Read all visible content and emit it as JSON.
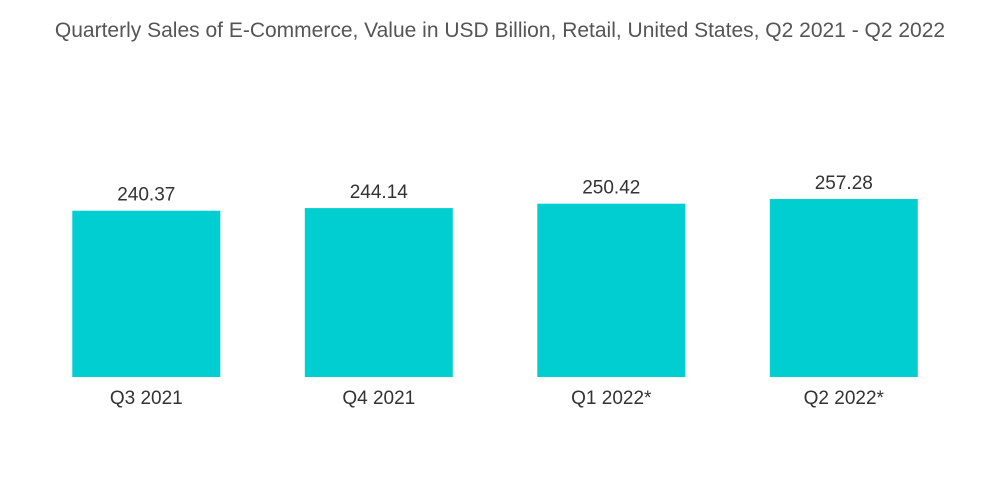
{
  "chart_data": {
    "type": "bar",
    "title": "Quarterly Sales of E-Commerce, Value in USD Billion, Retail, United States, Q2 2021 - Q2 2022",
    "categories": [
      "Q3 2021",
      "Q4 2021",
      "Q1 2022*",
      "Q2 2022*"
    ],
    "values": [
      240.37,
      244.14,
      250.42,
      257.28
    ],
    "data_labels": [
      "240.37",
      "244.14",
      "250.42",
      "257.28"
    ],
    "xlabel": "",
    "ylabel": "",
    "ylim": [
      0,
      257.28
    ],
    "grid": false,
    "legend": "none",
    "colors": {
      "bar": "#00CED1"
    }
  }
}
